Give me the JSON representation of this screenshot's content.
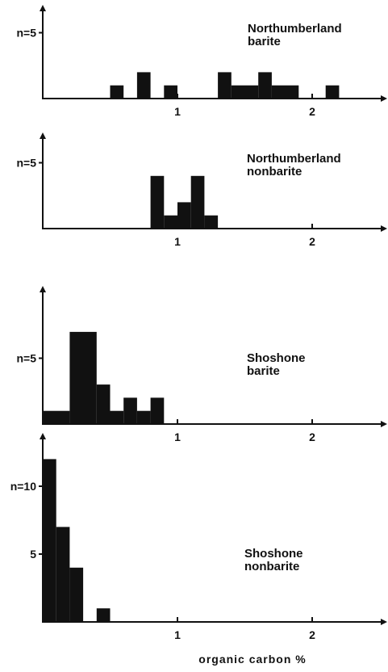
{
  "chart_data": [
    {
      "type": "bar",
      "title": "Northumberland barite",
      "title_lines": [
        "Northumberland",
        "barite"
      ],
      "xlim": [
        0,
        2.5
      ],
      "ylim": [
        0,
        5
      ],
      "xticks": [
        1,
        2
      ],
      "yticks": [
        {
          "value": 5,
          "label": "n=5"
        }
      ],
      "bin_width": 0.1,
      "bins": [
        {
          "x0": 0.5,
          "x1": 0.6,
          "value": 1
        },
        {
          "x0": 0.7,
          "x1": 0.8,
          "value": 2
        },
        {
          "x0": 0.9,
          "x1": 1.0,
          "value": 1
        },
        {
          "x0": 1.3,
          "x1": 1.4,
          "value": 2
        },
        {
          "x0": 1.4,
          "x1": 1.6,
          "value": 1
        },
        {
          "x0": 1.6,
          "x1": 1.7,
          "value": 2
        },
        {
          "x0": 1.7,
          "x1": 1.9,
          "value": 1
        },
        {
          "x0": 2.1,
          "x1": 2.2,
          "value": 1
        }
      ]
    },
    {
      "type": "bar",
      "title": "Northumberland nonbarite",
      "title_lines": [
        "Northumberland",
        "nonbarite"
      ],
      "xlim": [
        0,
        2.5
      ],
      "ylim": [
        0,
        5
      ],
      "xticks": [
        1,
        2
      ],
      "yticks": [
        {
          "value": 5,
          "label": "n=5"
        }
      ],
      "bin_width": 0.1,
      "bins": [
        {
          "x0": 0.8,
          "x1": 0.9,
          "value": 4
        },
        {
          "x0": 0.9,
          "x1": 1.0,
          "value": 1
        },
        {
          "x0": 1.0,
          "x1": 1.1,
          "value": 2
        },
        {
          "x0": 1.1,
          "x1": 1.2,
          "value": 4
        },
        {
          "x0": 1.2,
          "x1": 1.3,
          "value": 1
        }
      ]
    },
    {
      "type": "bar",
      "title": "Shoshone barite",
      "title_lines": [
        "Shoshone",
        "barite"
      ],
      "xlim": [
        0,
        2.5
      ],
      "ylim": [
        0,
        8.5
      ],
      "xticks": [
        1,
        2
      ],
      "yticks": [
        {
          "value": 5,
          "label": "n=5"
        }
      ],
      "bin_width": 0.1,
      "bins": [
        {
          "x0": 0.0,
          "x1": 0.2,
          "value": 1
        },
        {
          "x0": 0.2,
          "x1": 0.4,
          "value": 7
        },
        {
          "x0": 0.4,
          "x1": 0.5,
          "value": 3
        },
        {
          "x0": 0.5,
          "x1": 0.6,
          "value": 1
        },
        {
          "x0": 0.6,
          "x1": 0.7,
          "value": 2
        },
        {
          "x0": 0.7,
          "x1": 0.8,
          "value": 1
        },
        {
          "x0": 0.8,
          "x1": 0.9,
          "value": 2
        }
      ]
    },
    {
      "type": "bar",
      "title": "Shoshone nonbarite",
      "title_lines": [
        "Shoshone",
        "nonbarite"
      ],
      "xlim": [
        0,
        2.5
      ],
      "ylim": [
        0,
        13.5
      ],
      "xticks": [
        1,
        2
      ],
      "yticks": [
        {
          "value": 10,
          "label": "n=10"
        },
        {
          "value": 5,
          "label": "5"
        }
      ],
      "xlabel": "organic carbon %",
      "bin_width": 0.1,
      "bins": [
        {
          "x0": 0.0,
          "x1": 0.1,
          "value": 12
        },
        {
          "x0": 0.1,
          "x1": 0.2,
          "value": 7
        },
        {
          "x0": 0.2,
          "x1": 0.3,
          "value": 4
        },
        {
          "x0": 0.4,
          "x1": 0.5,
          "value": 1
        }
      ]
    }
  ]
}
